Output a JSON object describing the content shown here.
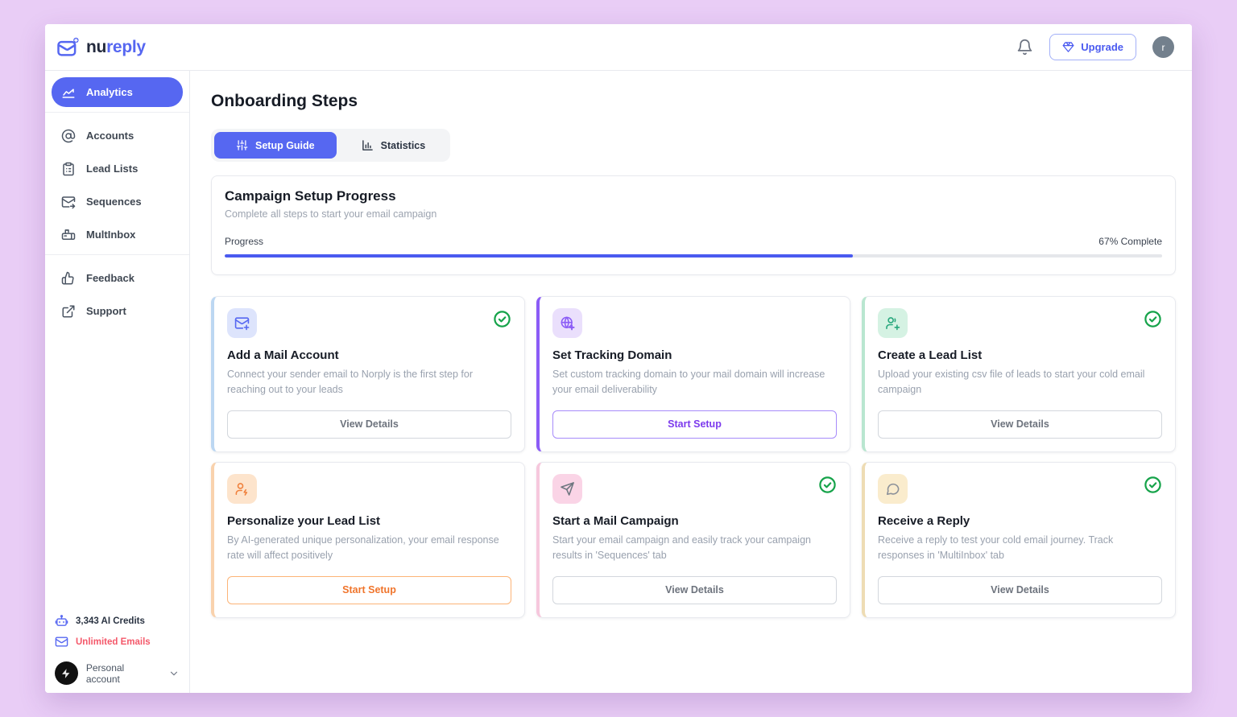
{
  "app": {
    "logo": {
      "prefix": "nu",
      "suffix": "reply",
      "icon": "logo-mail-icon"
    },
    "header": {
      "bell_icon": "bell-icon",
      "upgrade": {
        "label": "Upgrade",
        "icon": "upgrade-gem-icon"
      },
      "avatar_letter": "r"
    }
  },
  "sidebar": {
    "items": [
      {
        "id": "analytics",
        "label": "Analytics",
        "icon": "analytics-chart-icon",
        "active": true,
        "divider_after": true
      },
      {
        "id": "accounts",
        "label": "Accounts",
        "icon": "at-sign-icon",
        "active": false
      },
      {
        "id": "lead-lists",
        "label": "Lead Lists",
        "icon": "clipboard-list-icon",
        "active": false
      },
      {
        "id": "sequences",
        "label": "Sequences",
        "icon": "mail-forward-icon",
        "active": false
      },
      {
        "id": "multinbox",
        "label": "MultInbox",
        "icon": "mailbox-icon",
        "active": false,
        "divider_after": true
      },
      {
        "id": "feedback",
        "label": "Feedback",
        "icon": "thumbs-up-icon",
        "active": false
      },
      {
        "id": "support",
        "label": "Support",
        "icon": "external-link-icon",
        "active": false
      }
    ],
    "footer": {
      "ai_credits": {
        "label": "3,343 AI Credits",
        "icon": "robot-icon"
      },
      "unlimited_emails": {
        "label": "Unlimited Emails",
        "icon": "mail-icon"
      },
      "account": {
        "label": "Personal account",
        "avatar_icon": "bolt-icon",
        "chevron_icon": "chevron-down-icon"
      }
    }
  },
  "main": {
    "title": "Onboarding Steps",
    "tabs": [
      {
        "label": "Setup Guide",
        "icon": "sliders-icon",
        "active": true
      },
      {
        "label": "Statistics",
        "icon": "bar-chart-icon",
        "active": false
      }
    ],
    "progress_card": {
      "title": "Campaign Setup Progress",
      "subtitle": "Complete all steps to start your email campaign",
      "progress_label": "Progress",
      "percent": 67,
      "percent_label": "67% Complete"
    },
    "cards": [
      {
        "title": "Add a Mail Account",
        "description": "Connect your sender email to Norply is the first step for reaching out to your leads",
        "button_label": "View Details",
        "button_style": "neutral",
        "completed": true,
        "icon": "mail-plus-icon",
        "accent": "#bcd7f2",
        "tile_bg": "#dde4fc",
        "tile_fg": "#5667f1"
      },
      {
        "title": "Set Tracking Domain",
        "description": "Set custom tracking domain to your mail domain will increase your email deliverability",
        "button_label": "Start Setup",
        "button_style": "purple",
        "completed": false,
        "icon": "globe-plus-icon",
        "accent": "#8b5cf6",
        "tile_bg": "#eadffc",
        "tile_fg": "#8b5cf6"
      },
      {
        "title": "Create a Lead List",
        "description": "Upload your existing csv file of leads to start your cold email campaign",
        "button_label": "View Details",
        "button_style": "neutral",
        "completed": true,
        "icon": "user-plus-icon",
        "accent": "#b9e6d0",
        "tile_bg": "#d5f2e3",
        "tile_fg": "#27a77c"
      },
      {
        "title": "Personalize your Lead List",
        "description": "By AI-generated unique personalization, your email response rate will affect positively",
        "button_label": "Start Setup",
        "button_style": "orange",
        "completed": false,
        "icon": "user-spark-icon",
        "accent": "#f9d2ad",
        "tile_bg": "#fde4cc",
        "tile_fg": "#f0813d"
      },
      {
        "title": "Start a Mail Campaign",
        "description": "Start your email campaign and easily track your campaign results in 'Sequences' tab",
        "button_label": "View Details",
        "button_style": "neutral",
        "completed": true,
        "icon": "send-icon",
        "accent": "#f6c8dd",
        "tile_bg": "#fad4e6",
        "tile_fg": "#6e7680"
      },
      {
        "title": "Receive a Reply",
        "description": "Receive a reply to test your cold email journey. Track responses in 'MultiInbox' tab",
        "button_label": "View Details",
        "button_style": "neutral",
        "completed": true,
        "icon": "message-bubble-icon",
        "accent": "#eedcb4",
        "tile_bg": "#faeccd",
        "tile_fg": "#8b9099"
      }
    ]
  },
  "colors": {
    "primary": "#5667f1",
    "page_background": "#e9cdf6",
    "progress_fill": "#4a5af0",
    "check_green": "#16a34a",
    "unlimited_emails_text": "#f4586a"
  }
}
